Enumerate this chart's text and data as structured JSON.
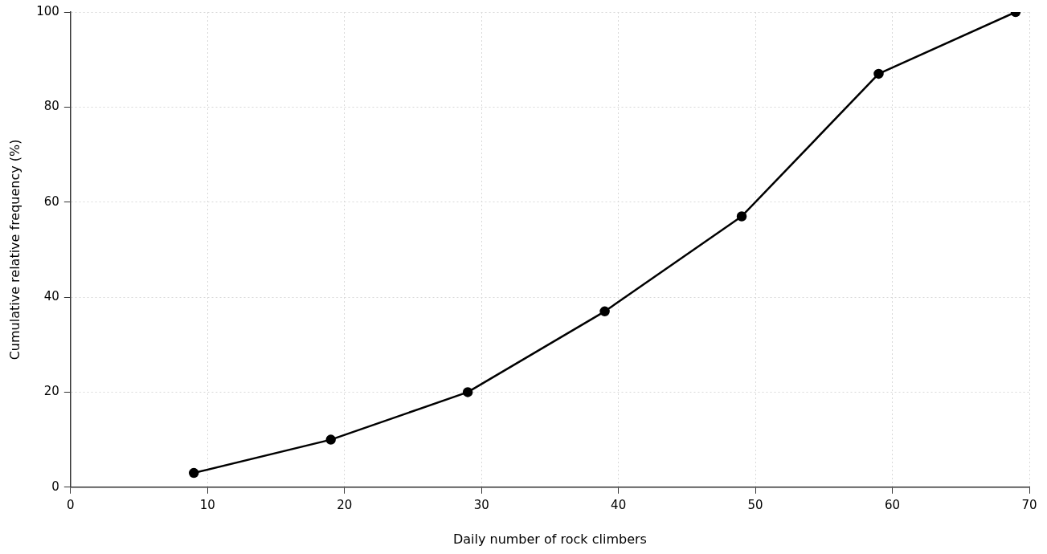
{
  "chart_data": {
    "type": "line",
    "xlabel": "Daily number of rock climbers",
    "ylabel": "Cumulative relative frequency (%)",
    "x": [
      9,
      19,
      29,
      39,
      49,
      59,
      69
    ],
    "series": [
      {
        "color": "#000000",
        "values": [
          3,
          10,
          20,
          37,
          57,
          87,
          100
        ]
      }
    ],
    "xlim": [
      0,
      70
    ],
    "xticks": [
      0,
      10,
      20,
      30,
      40,
      50,
      60,
      70
    ],
    "ylim": [
      0,
      100
    ],
    "yticks": [
      0,
      20,
      40,
      60,
      80,
      100
    ],
    "grid": true,
    "legend": false,
    "marker": "circle",
    "line_style": "solid"
  }
}
